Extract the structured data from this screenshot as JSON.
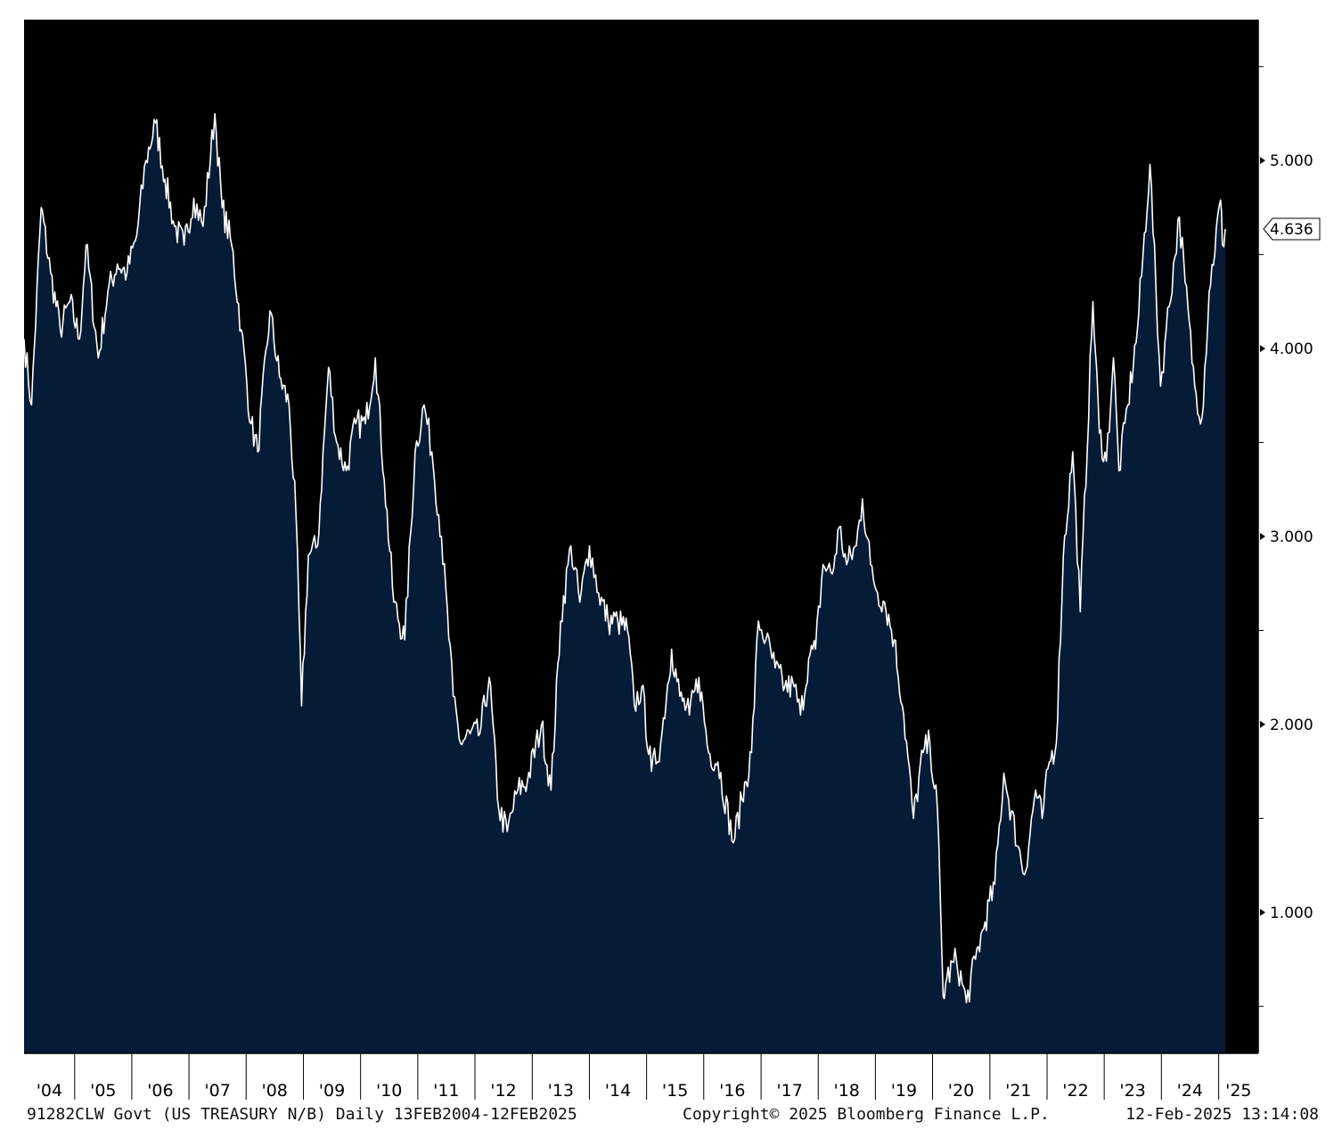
{
  "chart_data": {
    "type": "area",
    "title": "",
    "xlabel": "",
    "ylabel": "",
    "x_tick_labels": [
      "'04",
      "'05",
      "'06",
      "'07",
      "'08",
      "'09",
      "'10",
      "'11",
      "'12",
      "'13",
      "'14",
      "'15",
      "'16",
      "'17",
      "'18",
      "'19",
      "'20",
      "'21",
      "'22",
      "'23",
      "'24",
      "'25"
    ],
    "y_tick_labels": [
      "1.000",
      "2.000",
      "3.000",
      "4.000",
      "5.000"
    ],
    "ylim": [
      0.25,
      5.75
    ],
    "xlim": [
      "2004-02-13",
      "2025-02-12"
    ],
    "last_value": "4.636",
    "grid": false,
    "colors": {
      "background": "#000000",
      "area_fill": "#061b36",
      "line": "#ffffff",
      "axis": "#ffffff",
      "page": "#ffffff"
    },
    "series": [
      {
        "values": [
          [
            "2004-02-13",
            4.05
          ],
          [
            "2004-04-01",
            3.7
          ],
          [
            "2004-06-01",
            4.75
          ],
          [
            "2004-08-01",
            4.4
          ],
          [
            "2004-10-01",
            4.1
          ],
          [
            "2004-12-01",
            4.25
          ],
          [
            "2005-02-01",
            4.05
          ],
          [
            "2005-03-15",
            4.55
          ],
          [
            "2005-06-01",
            3.95
          ],
          [
            "2005-08-01",
            4.3
          ],
          [
            "2005-10-01",
            4.45
          ],
          [
            "2005-12-01",
            4.4
          ],
          [
            "2006-02-01",
            4.6
          ],
          [
            "2006-04-01",
            5.0
          ],
          [
            "2006-06-01",
            5.2
          ],
          [
            "2006-08-01",
            4.9
          ],
          [
            "2006-10-01",
            4.65
          ],
          [
            "2006-12-01",
            4.55
          ],
          [
            "2007-02-01",
            4.8
          ],
          [
            "2007-04-01",
            4.65
          ],
          [
            "2007-06-15",
            5.25
          ],
          [
            "2007-08-01",
            4.75
          ],
          [
            "2007-10-01",
            4.55
          ],
          [
            "2007-12-01",
            4.1
          ],
          [
            "2008-02-01",
            3.6
          ],
          [
            "2008-03-15",
            3.45
          ],
          [
            "2008-06-01",
            4.2
          ],
          [
            "2008-08-01",
            3.85
          ],
          [
            "2008-10-01",
            3.7
          ],
          [
            "2008-11-15",
            3.1
          ],
          [
            "2008-12-20",
            2.1
          ],
          [
            "2009-02-01",
            2.9
          ],
          [
            "2009-04-01",
            2.95
          ],
          [
            "2009-06-10",
            3.9
          ],
          [
            "2009-08-01",
            3.5
          ],
          [
            "2009-10-01",
            3.35
          ],
          [
            "2009-12-01",
            3.6
          ],
          [
            "2010-02-01",
            3.6
          ],
          [
            "2010-04-05",
            3.95
          ],
          [
            "2010-06-01",
            3.3
          ],
          [
            "2010-08-01",
            2.65
          ],
          [
            "2010-10-10",
            2.45
          ],
          [
            "2010-12-15",
            3.45
          ],
          [
            "2011-02-10",
            3.7
          ],
          [
            "2011-04-01",
            3.45
          ],
          [
            "2011-06-01",
            3.0
          ],
          [
            "2011-08-15",
            2.15
          ],
          [
            "2011-10-01",
            1.9
          ],
          [
            "2011-12-01",
            1.95
          ],
          [
            "2012-02-01",
            1.95
          ],
          [
            "2012-04-01",
            2.25
          ],
          [
            "2012-06-01",
            1.55
          ],
          [
            "2012-07-25",
            1.43
          ],
          [
            "2012-10-01",
            1.65
          ],
          [
            "2012-12-01",
            1.7
          ],
          [
            "2013-03-01",
            2.0
          ],
          [
            "2013-05-01",
            1.65
          ],
          [
            "2013-07-01",
            2.55
          ],
          [
            "2013-09-05",
            2.95
          ],
          [
            "2013-11-01",
            2.65
          ],
          [
            "2014-01-01",
            2.95
          ],
          [
            "2014-03-01",
            2.7
          ],
          [
            "2014-05-01",
            2.55
          ],
          [
            "2014-07-01",
            2.55
          ],
          [
            "2014-09-01",
            2.5
          ],
          [
            "2014-10-15",
            2.1
          ],
          [
            "2014-12-01",
            2.2
          ],
          [
            "2015-02-01",
            1.75
          ],
          [
            "2015-04-01",
            1.9
          ],
          [
            "2015-06-10",
            2.4
          ],
          [
            "2015-08-01",
            2.15
          ],
          [
            "2015-10-01",
            2.05
          ],
          [
            "2015-12-01",
            2.25
          ],
          [
            "2016-02-01",
            1.85
          ],
          [
            "2016-04-01",
            1.8
          ],
          [
            "2016-07-08",
            1.37
          ],
          [
            "2016-09-01",
            1.6
          ],
          [
            "2016-11-01",
            1.85
          ],
          [
            "2016-12-15",
            2.55
          ],
          [
            "2017-02-01",
            2.45
          ],
          [
            "2017-04-01",
            2.3
          ],
          [
            "2017-06-01",
            2.2
          ],
          [
            "2017-08-01",
            2.2
          ],
          [
            "2017-09-10",
            2.05
          ],
          [
            "2017-11-01",
            2.35
          ],
          [
            "2017-12-15",
            2.4
          ],
          [
            "2018-02-01",
            2.85
          ],
          [
            "2018-04-01",
            2.8
          ],
          [
            "2018-05-15",
            3.05
          ],
          [
            "2018-07-01",
            2.85
          ],
          [
            "2018-09-01",
            2.95
          ],
          [
            "2018-10-10",
            3.2
          ],
          [
            "2018-12-01",
            2.85
          ],
          [
            "2019-01-15",
            2.7
          ],
          [
            "2019-03-01",
            2.65
          ],
          [
            "2019-05-01",
            2.45
          ],
          [
            "2019-07-01",
            2.05
          ],
          [
            "2019-09-01",
            1.5
          ],
          [
            "2019-11-01",
            1.85
          ],
          [
            "2019-12-15",
            1.9
          ],
          [
            "2020-02-01",
            1.55
          ],
          [
            "2020-03-09",
            0.55
          ],
          [
            "2020-04-01",
            0.65
          ],
          [
            "2020-06-01",
            0.75
          ],
          [
            "2020-08-04",
            0.52
          ],
          [
            "2020-10-01",
            0.75
          ],
          [
            "2020-12-01",
            0.95
          ],
          [
            "2021-02-01",
            1.15
          ],
          [
            "2021-03-31",
            1.74
          ],
          [
            "2021-05-01",
            1.6
          ],
          [
            "2021-07-01",
            1.35
          ],
          [
            "2021-08-10",
            1.2
          ],
          [
            "2021-10-20",
            1.65
          ],
          [
            "2021-12-01",
            1.5
          ],
          [
            "2022-01-15",
            1.8
          ],
          [
            "2022-03-01",
            1.9
          ],
          [
            "2022-04-15",
            2.9
          ],
          [
            "2022-06-14",
            3.45
          ],
          [
            "2022-08-01",
            2.6
          ],
          [
            "2022-10-21",
            4.25
          ],
          [
            "2022-12-01",
            3.55
          ],
          [
            "2023-01-15",
            3.4
          ],
          [
            "2023-03-01",
            3.95
          ],
          [
            "2023-04-05",
            3.35
          ],
          [
            "2023-06-01",
            3.7
          ],
          [
            "2023-08-01",
            4.1
          ],
          [
            "2023-10-20",
            4.98
          ],
          [
            "2023-12-27",
            3.8
          ],
          [
            "2024-02-01",
            4.1
          ],
          [
            "2024-04-25",
            4.7
          ],
          [
            "2024-06-01",
            4.35
          ],
          [
            "2024-08-01",
            3.8
          ],
          [
            "2024-09-16",
            3.63
          ],
          [
            "2024-11-01",
            4.3
          ],
          [
            "2025-01-13",
            4.79
          ],
          [
            "2025-01-25",
            4.55
          ],
          [
            "2025-02-12",
            4.636
          ]
        ]
      }
    ]
  },
  "footer": {
    "left": "91282CLW Govt (US TREASURY N/B)  Daily 13FEB2004-12FEB2025",
    "center": "Copyright© 2025 Bloomberg Finance L.P.",
    "right": "12-Feb-2025 13:14:08"
  }
}
